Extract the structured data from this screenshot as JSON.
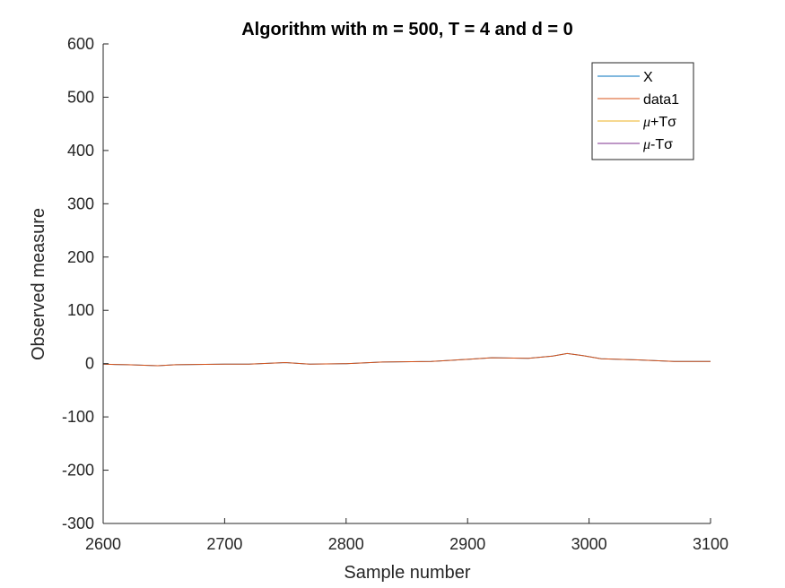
{
  "chart_data": {
    "type": "line",
    "title": "Algorithm with m = 500, T = 4 and d = 0",
    "xlabel": "Sample number",
    "ylabel": "Observed measure",
    "xlim": [
      2600,
      3100
    ],
    "ylim": [
      -300,
      600
    ],
    "xticks": [
      2600,
      2700,
      2800,
      2900,
      3000,
      3100
    ],
    "yticks": [
      -300,
      -200,
      -100,
      0,
      100,
      200,
      300,
      400,
      500,
      600
    ],
    "grid": false,
    "legend_position": "top-right",
    "series": [
      {
        "name": "X",
        "color": "#0072BD",
        "x": [
          2600,
          2620,
          2645,
          2660,
          2700,
          2720,
          2750,
          2770,
          2800,
          2830,
          2870,
          2900,
          2920,
          2950,
          2970,
          2982,
          2995,
          3010,
          3040,
          3070,
          3100
        ],
        "y": [
          -1,
          -2,
          -4,
          -2,
          -1,
          -1,
          2,
          -1,
          0,
          3,
          4,
          8,
          11,
          10,
          14,
          19,
          15,
          9,
          7,
          4,
          4
        ]
      },
      {
        "name": "data1",
        "color": "#D95319",
        "x": [
          2600,
          2620,
          2645,
          2660,
          2700,
          2720,
          2750,
          2770,
          2800,
          2830,
          2870,
          2900,
          2920,
          2950,
          2970,
          2982,
          2995,
          3010,
          3040,
          3070,
          3100
        ],
        "y": [
          -1,
          -2,
          -4,
          -2,
          -1,
          -1,
          2,
          -1,
          0,
          3,
          4,
          8,
          11,
          10,
          14,
          19,
          15,
          9,
          7,
          4,
          4
        ]
      },
      {
        "name_prefix": "μ",
        "name_suffix": "+Tσ",
        "color": "#EDB120",
        "x": [],
        "y": []
      },
      {
        "name_prefix": "μ",
        "name_suffix": "-Tσ",
        "color": "#7E2F8E",
        "x": [],
        "y": []
      }
    ]
  }
}
